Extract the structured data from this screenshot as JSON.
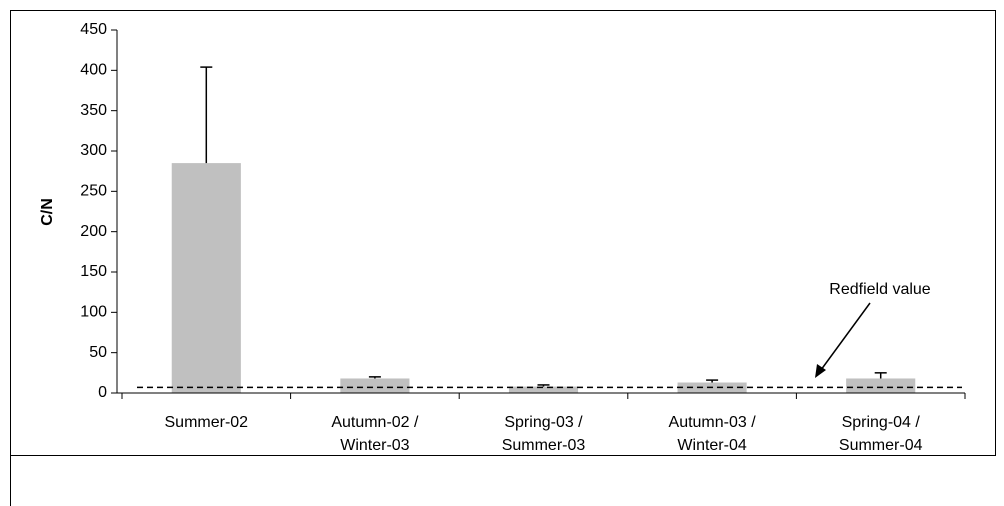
{
  "chart_data": {
    "type": "bar",
    "y_label": "C/N",
    "categories": [
      [
        "Summer-02"
      ],
      [
        "Autumn-02 /",
        "Winter-03"
      ],
      [
        "Spring-03 /",
        "Summer-03"
      ],
      [
        "Autumn-03 /",
        "Winter-04"
      ],
      [
        "Spring-04 /",
        "Summer-04"
      ]
    ],
    "values": [
      285,
      18,
      8,
      13,
      18
    ],
    "errors": [
      119,
      2,
      2,
      3,
      7
    ],
    "color": "#c0c0c0",
    "ylim": [
      0,
      450
    ],
    "yticks": [
      0,
      50,
      100,
      150,
      200,
      250,
      300,
      350,
      400,
      450
    ],
    "reference_line": {
      "value": 7,
      "label": "Redfield value"
    }
  }
}
